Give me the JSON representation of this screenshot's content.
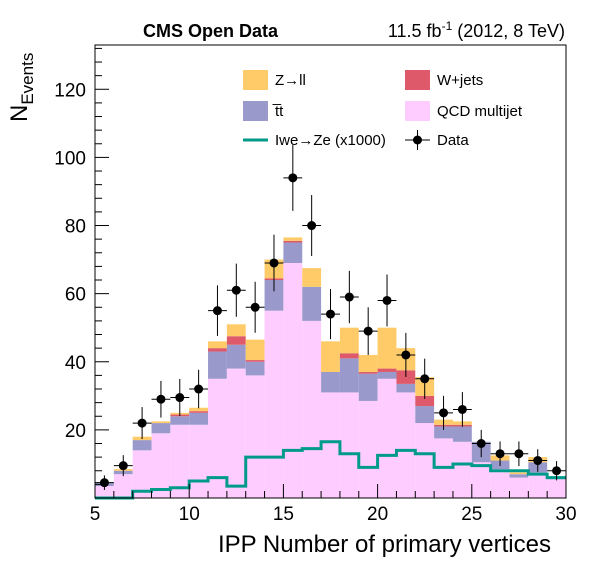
{
  "chart_data": {
    "type": "bar",
    "header_left": "CMS Open Data",
    "header_right": {
      "pre": "11.5 fb",
      "sup": "-1",
      "post": " (2012, 8 TeV)"
    },
    "xlabel": "IPP Number of primary vertices",
    "ylabel": {
      "main": "N",
      "sub": "Events"
    },
    "xlim": [
      5,
      30
    ],
    "ylim": [
      0,
      133
    ],
    "x_ticks": [
      5,
      10,
      15,
      20,
      25,
      30
    ],
    "y_ticks": [
      20,
      40,
      60,
      80,
      100,
      120
    ],
    "bin_width": 1,
    "bin_low_edges": [
      5,
      6,
      7,
      8,
      9,
      10,
      11,
      12,
      13,
      14,
      15,
      16,
      17,
      18,
      19,
      20,
      21,
      22,
      23,
      24,
      25,
      26,
      27,
      28,
      29
    ],
    "stack_order": [
      "qcd",
      "ttbar",
      "wjets",
      "zll"
    ],
    "series": [
      {
        "key": "qcd",
        "name": "QCD multijet",
        "color": "#ffccff",
        "values": [
          3.5,
          7,
          14,
          19,
          21.5,
          21.5,
          35,
          38,
          36,
          55,
          69,
          52,
          31,
          31,
          28.5,
          35,
          31,
          22,
          17.5,
          16.5,
          10.5,
          8.5,
          6,
          7.5,
          5.5
        ]
      },
      {
        "key": "ttbar",
        "name": "t̅t",
        "color": "#9999cc",
        "values": [
          1,
          1,
          3,
          3,
          2.5,
          3.5,
          8,
          7,
          4,
          9,
          6,
          10,
          6,
          10,
          8,
          2,
          2.5,
          5,
          3.5,
          4.5,
          6,
          2.5,
          1,
          3,
          0.5
        ]
      },
      {
        "key": "wjets",
        "name": "W+jets",
        "color": "#de5a6a",
        "values": [
          0,
          0,
          0,
          0,
          0.5,
          0.5,
          1,
          2.5,
          0.5,
          0.5,
          0.5,
          0,
          0,
          1.5,
          0.5,
          1,
          4,
          3,
          0.5,
          0.5,
          0,
          0,
          0,
          0,
          0
        ]
      },
      {
        "key": "zll",
        "name": "Z→ll",
        "color": "#fecb68",
        "values": [
          0,
          0.5,
          1,
          0.5,
          0.5,
          1,
          2,
          3.5,
          6,
          5.5,
          1,
          5.5,
          9,
          7.5,
          5,
          12,
          6.5,
          5.5,
          1.5,
          1,
          0,
          1.5,
          0.5,
          1.5,
          0
        ]
      }
    ],
    "signal": {
      "name": "Iwe→Ze (x1000)",
      "color": "#009a8a",
      "values": [
        0,
        0,
        2,
        2.5,
        3,
        5,
        6,
        3.5,
        12,
        12,
        14,
        14.5,
        16.5,
        13,
        9,
        12.5,
        14,
        13,
        9,
        10,
        9.5,
        8,
        8,
        7,
        6
      ]
    },
    "data_points": {
      "name": "Data",
      "color": "#000000",
      "x": [
        5.5,
        6.5,
        7.5,
        8.5,
        9.5,
        10.5,
        11.5,
        12.5,
        13.5,
        14.5,
        15.5,
        16.5,
        17.5,
        18.5,
        19.5,
        20.5,
        21.5,
        22.5,
        23.5,
        24.5,
        25.5,
        26.5,
        27.5,
        28.5,
        29.5
      ],
      "y": [
        4.5,
        9.5,
        22,
        29,
        29.5,
        32,
        55,
        61,
        56,
        69,
        94,
        80,
        54,
        59,
        49,
        58,
        42,
        35,
        25,
        26,
        16,
        13,
        13,
        11,
        8
      ]
    },
    "legend_position": "top",
    "legend_rows": [
      [
        "zll",
        "wjets"
      ],
      [
        "ttbar",
        "qcd"
      ],
      [
        "signal",
        "data"
      ]
    ]
  }
}
